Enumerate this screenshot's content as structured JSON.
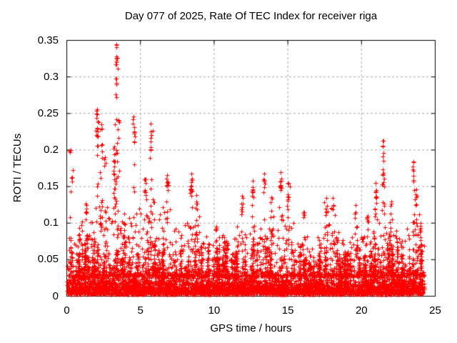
{
  "chart_data": {
    "type": "scatter",
    "title": "Day 077 of 2025, Rate Of TEC Index for receiver riga",
    "xlabel": "GPS time / hours",
    "ylabel": "ROTI / TECUs",
    "xlim": [
      0,
      25
    ],
    "ylim": [
      0,
      0.35
    ],
    "xtick_labels": [
      "0",
      "5",
      "10",
      "15",
      "20",
      "25"
    ],
    "ytick_labels": [
      "0",
      "0.05",
      "0.1",
      "0.15",
      "0.2",
      "0.25",
      "0.3",
      "0.35"
    ],
    "grid": true,
    "legend": "none",
    "marker": "plus",
    "marker_size_px": 7,
    "colors": {
      "points": "#ff0000",
      "grid": "#a8a8a8",
      "axis": "#000000",
      "text": "#000000",
      "background": "#ffffff"
    },
    "time_range_hours": [
      0,
      24.25
    ],
    "max_point": {
      "t": 3.35,
      "roti": 0.345
    },
    "spikes": [
      [
        0.25,
        0.2,
        0.09,
        5
      ],
      [
        0.4,
        0.173,
        0.09,
        3
      ],
      [
        1.3,
        0.127,
        0.08,
        6
      ],
      [
        2.05,
        0.256,
        0.1,
        22
      ],
      [
        2.35,
        0.235,
        0.1,
        8
      ],
      [
        2.6,
        0.19,
        0.09,
        8
      ],
      [
        3.2,
        0.205,
        0.12,
        16
      ],
      [
        3.35,
        0.345,
        0.12,
        26
      ],
      [
        3.5,
        0.241,
        0.1,
        8
      ],
      [
        4.55,
        0.246,
        0.1,
        12
      ],
      [
        5.35,
        0.16,
        0.09,
        10
      ],
      [
        5.7,
        0.236,
        0.1,
        14
      ],
      [
        6.8,
        0.166,
        0.09,
        12
      ],
      [
        8.45,
        0.168,
        0.07,
        16
      ],
      [
        8.8,
        0.138,
        0.07,
        8
      ],
      [
        10.15,
        0.095,
        0.05,
        8
      ],
      [
        11.9,
        0.137,
        0.06,
        10
      ],
      [
        12.6,
        0.158,
        0.06,
        12
      ],
      [
        13.4,
        0.168,
        0.07,
        10
      ],
      [
        13.9,
        0.135,
        0.07,
        10
      ],
      [
        14.5,
        0.17,
        0.08,
        14
      ],
      [
        15.0,
        0.155,
        0.07,
        12
      ],
      [
        16.1,
        0.115,
        0.06,
        8
      ],
      [
        17.6,
        0.134,
        0.06,
        12
      ],
      [
        18.05,
        0.134,
        0.06,
        10
      ],
      [
        19.6,
        0.125,
        0.06,
        8
      ],
      [
        20.4,
        0.11,
        0.06,
        8
      ],
      [
        20.95,
        0.155,
        0.06,
        14
      ],
      [
        21.45,
        0.213,
        0.1,
        20
      ],
      [
        22.0,
        0.13,
        0.06,
        8
      ],
      [
        23.5,
        0.184,
        0.08,
        14
      ],
      [
        23.7,
        0.146,
        0.06,
        12
      ]
    ],
    "baseline_envelope_per_half_hour": [
      0.09,
      0.1,
      0.1,
      0.12,
      0.13,
      0.12,
      0.13,
      0.12,
      0.11,
      0.12,
      0.12,
      0.13,
      0.11,
      0.13,
      0.1,
      0.09,
      0.1,
      0.12,
      0.08,
      0.07,
      0.08,
      0.09,
      0.08,
      0.1,
      0.09,
      0.1,
      0.09,
      0.11,
      0.1,
      0.11,
      0.1,
      0.08,
      0.09,
      0.08,
      0.08,
      0.1,
      0.09,
      0.08,
      0.08,
      0.09,
      0.09,
      0.1,
      0.11,
      0.1,
      0.09,
      0.08,
      0.1,
      0.11
    ],
    "distribution": {
      "seed": 77,
      "baseline_count": 4200,
      "baseline_sigma": 0.013,
      "mid_count": 1300,
      "column_count": 115,
      "spike_time_jitter": 0.05
    }
  }
}
